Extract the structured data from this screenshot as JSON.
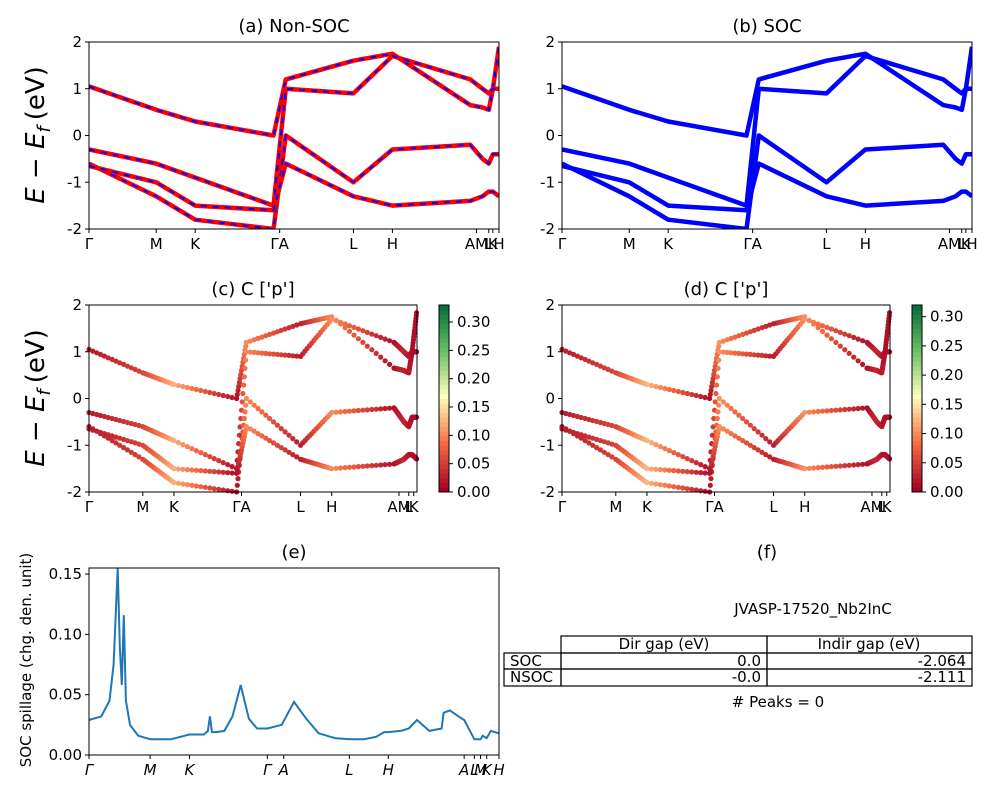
{
  "colors": {
    "soc_line": "#0000ff",
    "nsoc_line": "#ff0000",
    "spillage_line": "#1f77b4",
    "colormap": "RdYlGn"
  },
  "panels": {
    "a": {
      "title": "(a) Non-SOC"
    },
    "b": {
      "title": "(b) SOC"
    },
    "c": {
      "title": "(c)  C ['p']"
    },
    "d": {
      "title": "(d) C ['p']"
    },
    "e": {
      "title": "(e)"
    },
    "f": {
      "title": "(f)"
    }
  },
  "ylabel_band": "E − E",
  "ylabel_band_sub": "f",
  "ylabel_band_unit": "(eV)",
  "ylabel_spillage": "SOC spillage (chg. den. unit)",
  "info": {
    "name": "JVASP-17520_Nb2InC",
    "headers": [
      "Dir gap (eV)",
      "Indir gap (eV)"
    ],
    "rows": [
      {
        "label": "SOC",
        "dir": "0.0",
        "indir": "-2.064"
      },
      {
        "label": "NSOC",
        "dir": "-0.0",
        "indir": "-2.111"
      }
    ],
    "peaks": "# Peaks = 0"
  },
  "chart_data": [
    {
      "type": "line",
      "title": "(a) Non-SOC",
      "ylim": [
        -2,
        2
      ],
      "yticks": [
        "-2",
        "-1",
        "0",
        "1",
        "2"
      ],
      "kpath_labels": [
        "Γ",
        "M",
        "K",
        "Γ",
        "A",
        "L",
        "H",
        "A",
        "M",
        "L",
        "K",
        "H"
      ],
      "kpath_label_text": [
        "Γ",
        "M",
        "K",
        "ΓA",
        "L",
        "H",
        "AM",
        "L",
        "K",
        "H"
      ],
      "kpath_positions": [
        0,
        0.164,
        0.259,
        0.45,
        0.48,
        0.645,
        0.74,
        0.93,
        0.96,
        0.975,
        0.985,
        1.0
      ],
      "series": [
        {
          "name": "",
          "values": [
            1.05,
            0.55,
            0.3,
            0.0,
            1.2,
            1.6,
            1.75,
            0.65,
            0.6,
            0.55,
            1.0,
            1.9
          ]
        },
        {
          "name": "",
          "values": [
            -0.3,
            -0.6,
            -0.9,
            -1.5,
            1.0,
            0.9,
            1.7,
            1.2,
            1.0,
            0.9,
            1.0,
            1.0
          ]
        },
        {
          "name": "",
          "values": [
            -0.6,
            -1.3,
            -1.8,
            -2.0,
            0.0,
            -1.0,
            -0.3,
            -0.2,
            -0.5,
            -0.6,
            -0.4,
            -0.4
          ]
        },
        {
          "name": "",
          "values": [
            -0.65,
            -1.0,
            -1.5,
            -1.6,
            -0.6,
            -1.3,
            -1.5,
            -1.4,
            -1.3,
            -1.2,
            -1.2,
            -1.3
          ]
        }
      ]
    },
    {
      "type": "line",
      "title": "(b) SOC",
      "ylim": [
        -2,
        2
      ],
      "yticks": [
        "-2",
        "-1",
        "0",
        "1",
        "2"
      ],
      "kpath_labels": [
        "Γ",
        "M",
        "K",
        "Γ",
        "A",
        "L",
        "H",
        "A",
        "M",
        "L",
        "K",
        "H"
      ],
      "kpath_label_text": [
        "Γ",
        "M",
        "K",
        "ΓA",
        "L",
        "H",
        "AM",
        "L",
        "K",
        "H"
      ],
      "kpath_positions": [
        0,
        0.164,
        0.259,
        0.45,
        0.48,
        0.645,
        0.74,
        0.93,
        0.96,
        0.975,
        0.985,
        1.0
      ],
      "series": [
        {
          "name": "",
          "values": [
            1.05,
            0.55,
            0.3,
            0.0,
            1.2,
            1.6,
            1.75,
            0.65,
            0.6,
            0.55,
            1.0,
            1.9
          ]
        },
        {
          "name": "",
          "values": [
            -0.3,
            -0.6,
            -0.9,
            -1.5,
            1.0,
            0.9,
            1.7,
            1.2,
            1.0,
            0.9,
            1.0,
            1.0
          ]
        },
        {
          "name": "",
          "values": [
            -0.6,
            -1.3,
            -1.8,
            -2.0,
            0.0,
            -1.0,
            -0.3,
            -0.2,
            -0.5,
            -0.6,
            -0.4,
            -0.4
          ]
        },
        {
          "name": "",
          "values": [
            -0.65,
            -1.0,
            -1.5,
            -1.6,
            -0.6,
            -1.3,
            -1.5,
            -1.4,
            -1.3,
            -1.2,
            -1.2,
            -1.3
          ]
        }
      ]
    },
    {
      "type": "scatter",
      "title": "(c)  C ['p']",
      "ylim": [
        -2,
        2
      ],
      "yticks": [
        "-2",
        "-1",
        "0",
        "1",
        "2"
      ],
      "kpath_labels": [
        "Γ",
        "M",
        "K",
        "Γ",
        "A",
        "L",
        "H",
        "A",
        "M",
        "L",
        "K"
      ],
      "kpath_label_text": [
        "Γ",
        "M",
        "K",
        "ΓA",
        "L",
        "H",
        "AM",
        "L",
        "K"
      ],
      "colorbar_ticks": [
        "0.00",
        "0.05",
        "0.10",
        "0.15",
        "0.20",
        "0.25",
        "0.30"
      ],
      "colorbar_range": [
        0,
        0.33
      ],
      "weights": [
        0.02,
        0.05,
        0.12,
        0.01,
        0.1,
        0.02,
        0.1,
        0.01,
        0.03,
        0.02,
        0.01,
        0.01
      ]
    },
    {
      "type": "scatter",
      "title": "(d) C ['p']",
      "ylim": [
        -2,
        2
      ],
      "yticks": [
        "-2",
        "-1",
        "0",
        "1",
        "2"
      ],
      "kpath_labels": [
        "Γ",
        "M",
        "K",
        "Γ",
        "A",
        "L",
        "H",
        "A",
        "M",
        "L",
        "K"
      ],
      "kpath_label_text": [
        "Γ",
        "M",
        "K",
        "ΓA",
        "L",
        "H",
        "AM",
        "L",
        "K"
      ],
      "colorbar_ticks": [
        "0.00",
        "0.05",
        "0.10",
        "0.15",
        "0.20",
        "0.25",
        "0.30"
      ],
      "colorbar_range": [
        0,
        0.32
      ],
      "weights": [
        0.02,
        0.05,
        0.12,
        0.01,
        0.1,
        0.02,
        0.1,
        0.01,
        0.03,
        0.02,
        0.01,
        0.01
      ]
    },
    {
      "type": "line",
      "title": "(e)",
      "ylabel": "SOC spillage (chg. den. unit)",
      "ylim": [
        0,
        0.155
      ],
      "yticks": [
        "0.00",
        "0.05",
        "0.10",
        "0.15"
      ],
      "kpath_labels": [
        "Γ",
        "M",
        "K",
        "Γ",
        "A",
        "L",
        "H",
        "A",
        "L",
        "M",
        "K",
        "H"
      ],
      "kpath_label_text": [
        "Γ",
        "M",
        "K",
        "Γ",
        "A",
        "L",
        "H",
        "A",
        "L",
        "M",
        "K",
        "H"
      ],
      "kpath_positions": [
        0,
        0.149,
        0.245,
        0.435,
        0.475,
        0.635,
        0.73,
        0.915,
        0.94,
        0.955,
        0.97,
        1.0
      ],
      "x": [
        0,
        0.03,
        0.05,
        0.06,
        0.07,
        0.075,
        0.08,
        0.085,
        0.09,
        0.1,
        0.12,
        0.15,
        0.2,
        0.245,
        0.28,
        0.29,
        0.295,
        0.3,
        0.31,
        0.33,
        0.35,
        0.37,
        0.39,
        0.41,
        0.435,
        0.47,
        0.5,
        0.53,
        0.56,
        0.6,
        0.635,
        0.67,
        0.7,
        0.72,
        0.73,
        0.76,
        0.78,
        0.8,
        0.83,
        0.86,
        0.865,
        0.88,
        0.91,
        0.915,
        0.94,
        0.955,
        0.96,
        0.97,
        0.98,
        1.0
      ],
      "values": [
        0.029,
        0.032,
        0.045,
        0.075,
        0.155,
        0.09,
        0.058,
        0.116,
        0.045,
        0.025,
        0.016,
        0.013,
        0.013,
        0.017,
        0.017,
        0.02,
        0.032,
        0.019,
        0.019,
        0.02,
        0.032,
        0.058,
        0.03,
        0.022,
        0.022,
        0.025,
        0.044,
        0.03,
        0.018,
        0.014,
        0.013,
        0.013,
        0.015,
        0.019,
        0.019,
        0.02,
        0.022,
        0.029,
        0.02,
        0.022,
        0.035,
        0.037,
        0.03,
        0.029,
        0.013,
        0.013,
        0.016,
        0.014,
        0.02,
        0.018
      ]
    }
  ]
}
